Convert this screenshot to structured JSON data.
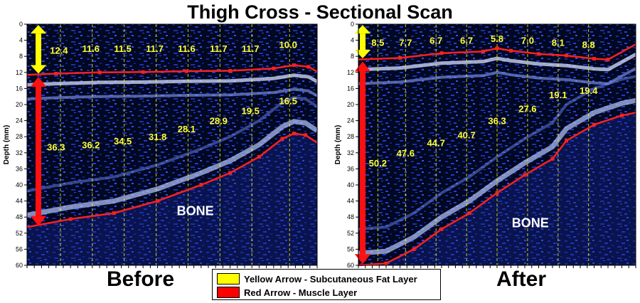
{
  "title": "Thigh Cross - Sectional Scan",
  "colors": {
    "fat": "#ffff00",
    "muscle": "#ff0000",
    "background": "#000820"
  },
  "ylabel": "Depth (mm)",
  "yticks": [
    0,
    4,
    8,
    12,
    16,
    20,
    24,
    28,
    32,
    36,
    40,
    44,
    48,
    52,
    56,
    60
  ],
  "panels": [
    {
      "label": "Before",
      "bone_label": "BONE",
      "fat_boundary": [
        [
          0,
          12.6
        ],
        [
          0.1,
          12.3
        ],
        [
          0.25,
          12.0
        ],
        [
          0.4,
          11.9
        ],
        [
          0.55,
          11.7
        ],
        [
          0.7,
          11.6
        ],
        [
          0.85,
          11.0
        ],
        [
          0.92,
          10.2
        ],
        [
          0.97,
          10.6
        ],
        [
          1.0,
          11.8
        ]
      ],
      "bone_boundary": [
        [
          0,
          50.5
        ],
        [
          0.15,
          48.5
        ],
        [
          0.3,
          47.0
        ],
        [
          0.45,
          44.0
        ],
        [
          0.6,
          40.0
        ],
        [
          0.7,
          37.0
        ],
        [
          0.8,
          33.0
        ],
        [
          0.88,
          28.5
        ],
        [
          0.92,
          27.2
        ],
        [
          0.96,
          27.6
        ],
        [
          1.0,
          29.5
        ]
      ],
      "fat_values": [
        "12.4",
        "11.6",
        "11.5",
        "11.7",
        "11.6",
        "11.7",
        "11.7",
        "10.0"
      ],
      "fat_value_pos": [
        [
          0.11,
          6.5
        ],
        [
          0.22,
          6.0
        ],
        [
          0.33,
          6.0
        ],
        [
          0.44,
          6.0
        ],
        [
          0.55,
          6.0
        ],
        [
          0.66,
          6.0
        ],
        [
          0.77,
          6.0
        ],
        [
          0.9,
          5.0
        ]
      ],
      "muscle_values": [
        "36.3",
        "36.2",
        "34.5",
        "31.8",
        "28.1",
        "28.9",
        "19.5",
        "16.5"
      ],
      "muscle_value_pos": [
        [
          0.1,
          30.5
        ],
        [
          0.22,
          30.0
        ],
        [
          0.33,
          29.0
        ],
        [
          0.45,
          28.0
        ],
        [
          0.55,
          26.0
        ],
        [
          0.66,
          24.0
        ],
        [
          0.77,
          21.5
        ],
        [
          0.9,
          19.0
        ]
      ]
    },
    {
      "label": "After",
      "bone_label": "BONE",
      "fat_boundary": [
        [
          0,
          8.8
        ],
        [
          0.15,
          8.4
        ],
        [
          0.3,
          7.2
        ],
        [
          0.45,
          6.8
        ],
        [
          0.5,
          6.0
        ],
        [
          0.55,
          6.6
        ],
        [
          0.65,
          7.4
        ],
        [
          0.75,
          7.8
        ],
        [
          0.85,
          8.6
        ],
        [
          0.9,
          8.8
        ],
        [
          1.0,
          5.0
        ]
      ],
      "bone_boundary": [
        [
          0,
          60.0
        ],
        [
          0.1,
          59.5
        ],
        [
          0.2,
          56.0
        ],
        [
          0.3,
          51.0
        ],
        [
          0.4,
          47.0
        ],
        [
          0.5,
          42.0
        ],
        [
          0.6,
          37.5
        ],
        [
          0.7,
          33.5
        ],
        [
          0.75,
          29.0
        ],
        [
          0.85,
          25.0
        ],
        [
          0.95,
          22.7
        ],
        [
          1.0,
          22.0
        ]
      ],
      "fat_values": [
        "8.5",
        "7.7",
        "6.7",
        "6.7",
        "5.8",
        "7.0",
        "8.1",
        "8.8"
      ],
      "fat_value_pos": [
        [
          0.07,
          4.5
        ],
        [
          0.17,
          4.5
        ],
        [
          0.28,
          4.0
        ],
        [
          0.39,
          4.0
        ],
        [
          0.5,
          3.5
        ],
        [
          0.61,
          4.0
        ],
        [
          0.72,
          4.5
        ],
        [
          0.83,
          5.0
        ]
      ],
      "muscle_values": [
        "50.2",
        "47.6",
        "44.7",
        "40.7",
        "36.3",
        "27.6",
        "19.1",
        "19.4"
      ],
      "muscle_value_pos": [
        [
          0.07,
          34.5
        ],
        [
          0.17,
          32.0
        ],
        [
          0.28,
          29.5
        ],
        [
          0.39,
          27.5
        ],
        [
          0.5,
          24.0
        ],
        [
          0.61,
          21.0
        ],
        [
          0.72,
          17.5
        ],
        [
          0.83,
          16.5
        ]
      ]
    }
  ],
  "legend": {
    "fat": "Yellow Arrow - Subcutaneous Fat Layer",
    "muscle": "Red Arrow - Muscle Layer"
  }
}
